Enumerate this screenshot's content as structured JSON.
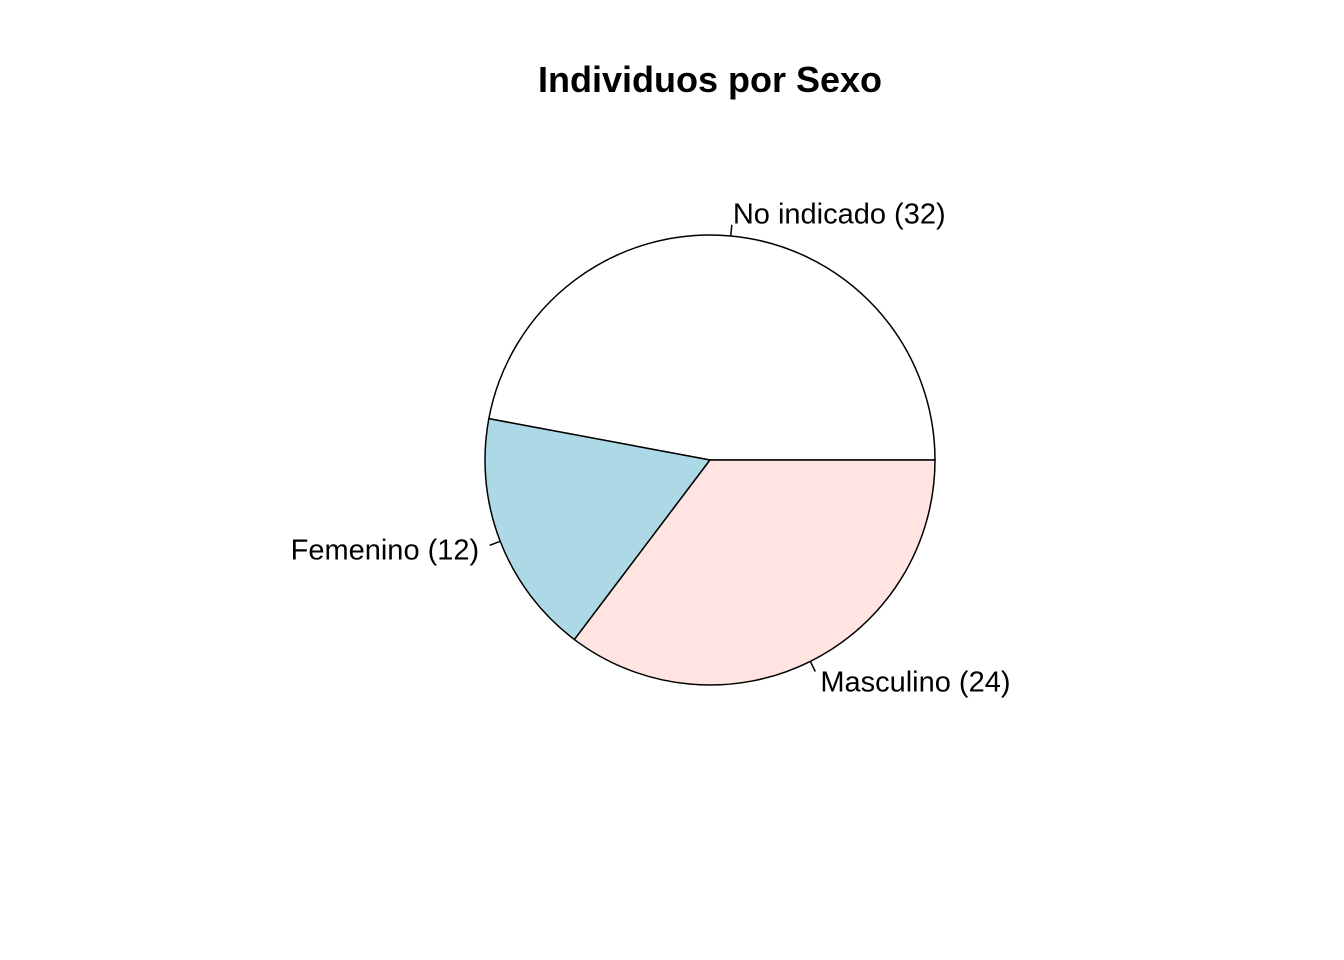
{
  "chart_data": {
    "type": "pie",
    "title": "Individuos por Sexo",
    "start_angle_deg": 0,
    "direction": "counterclockwise",
    "slices": [
      {
        "label": "No indicado (32)",
        "category": "No indicado",
        "value": 32,
        "color": "#FFFFFF"
      },
      {
        "label": "Femenino (12)",
        "category": "Femenino",
        "value": 12,
        "color": "#ADD8E6"
      },
      {
        "label": "Masculino (24)",
        "category": "Masculino",
        "value": 24,
        "color": "#FFE4E1"
      }
    ],
    "border_color": "#000000"
  }
}
